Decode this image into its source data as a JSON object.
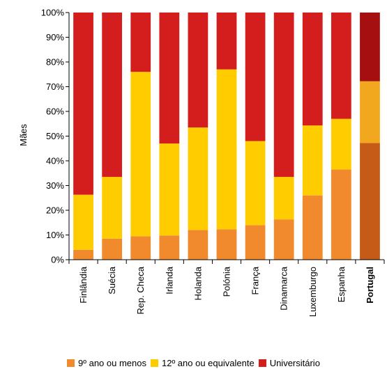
{
  "chart_data": {
    "type": "bar",
    "stacked": true,
    "ylabel": "Mães",
    "xlabel": "",
    "ylim": [
      0,
      100
    ],
    "yticks": [
      "0%",
      "10%",
      "20%",
      "30%",
      "40%",
      "50%",
      "60%",
      "70%",
      "80%",
      "90%",
      "100%"
    ],
    "categories": [
      "Finlândia",
      "Suécia",
      "Rep. Checa",
      "Irlanda",
      "Holanda",
      "Polónia",
      "França",
      "Dinamarca",
      "Luxemburgo",
      "Espanha",
      "Portugal"
    ],
    "highlight_category": "Portugal",
    "series": [
      {
        "name": "9º ano ou menos",
        "values": [
          4,
          8.5,
          9.5,
          9.8,
          12,
          12.3,
          14,
          16.3,
          26,
          36.5,
          47.2
        ],
        "color": "#F08A2C",
        "highlight_color": "#C65A17"
      },
      {
        "name": "12º ano ou equivalente",
        "values": [
          22.3,
          25,
          66.5,
          37.2,
          41.5,
          64.7,
          34,
          17.2,
          28.3,
          20.5,
          25
        ],
        "color": "#FFCC00",
        "highlight_color": "#F2A81E"
      },
      {
        "name": "Universitário",
        "values": [
          73.7,
          66.5,
          24,
          53,
          46.5,
          23,
          52,
          66.5,
          45.7,
          43,
          27.8
        ],
        "color": "#D41E1E",
        "highlight_color": "#A50F0F"
      }
    ],
    "grid": false,
    "legend": "bottom"
  }
}
